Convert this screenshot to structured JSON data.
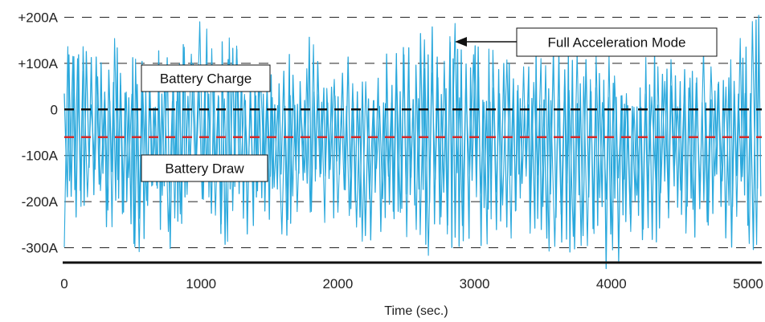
{
  "chart_data": {
    "type": "line",
    "title": "",
    "xlabel": "Time (sec.)",
    "ylabel": "",
    "xlim": [
      0,
      5100
    ],
    "ylim": [
      -320,
      220
    ],
    "x_ticks": [
      {
        "value": 0,
        "label": "0"
      },
      {
        "value": 1000,
        "label": "1000"
      },
      {
        "value": 2000,
        "label": "2000"
      },
      {
        "value": 3000,
        "label": "3000"
      },
      {
        "value": 4000,
        "label": "4000"
      },
      {
        "value": 5000,
        "label": "5000"
      }
    ],
    "y_ticks": [
      {
        "value": 200,
        "label": "+200A"
      },
      {
        "value": 100,
        "label": "+100A"
      },
      {
        "value": 0,
        "label": "0"
      },
      {
        "value": -100,
        "label": "-100A"
      },
      {
        "value": -200,
        "label": "-200A"
      },
      {
        "value": -300,
        "label": "-300A"
      }
    ],
    "grid": "horizontal dashed",
    "reference_lines": [
      {
        "value": 0,
        "color": "#111111"
      },
      {
        "value": -60,
        "color": "#d42a2a"
      }
    ],
    "series": [
      {
        "color": "#2aa8dc",
        "x_range": [
          0,
          5100
        ],
        "y_range_observed": [
          -360,
          220
        ],
        "mean": -60,
        "x": [
          0,
          200,
          400,
          600,
          800,
          1000,
          1200,
          1400,
          1600,
          1800,
          2000,
          2200,
          2400,
          2600,
          2800,
          3000,
          3200,
          3400,
          3600,
          3800,
          4000,
          4200,
          4400,
          4600,
          4800,
          5000
        ],
        "y_max": [
          210,
          130,
          160,
          110,
          150,
          220,
          170,
          140,
          120,
          160,
          130,
          110,
          150,
          180,
          210,
          150,
          160,
          120,
          170,
          140,
          150,
          120,
          140,
          110,
          200,
          210
        ],
        "y_min": [
          -330,
          -220,
          -300,
          -340,
          -320,
          -250,
          -300,
          -260,
          -290,
          -270,
          -230,
          -300,
          -250,
          -330,
          -320,
          -300,
          -310,
          -280,
          -330,
          -350,
          -360,
          -340,
          -260,
          -280,
          -290,
          -320
        ]
      }
    ]
  },
  "annotations": {
    "charge": "Battery Charge",
    "draw": "Battery Draw",
    "full_accel": "Full Acceleration Mode"
  },
  "colors": {
    "signal": "#2aa8dc",
    "zero_line": "#111111",
    "mean_line": "#d42a2a",
    "grid": "#222222",
    "axis": "#111111"
  }
}
